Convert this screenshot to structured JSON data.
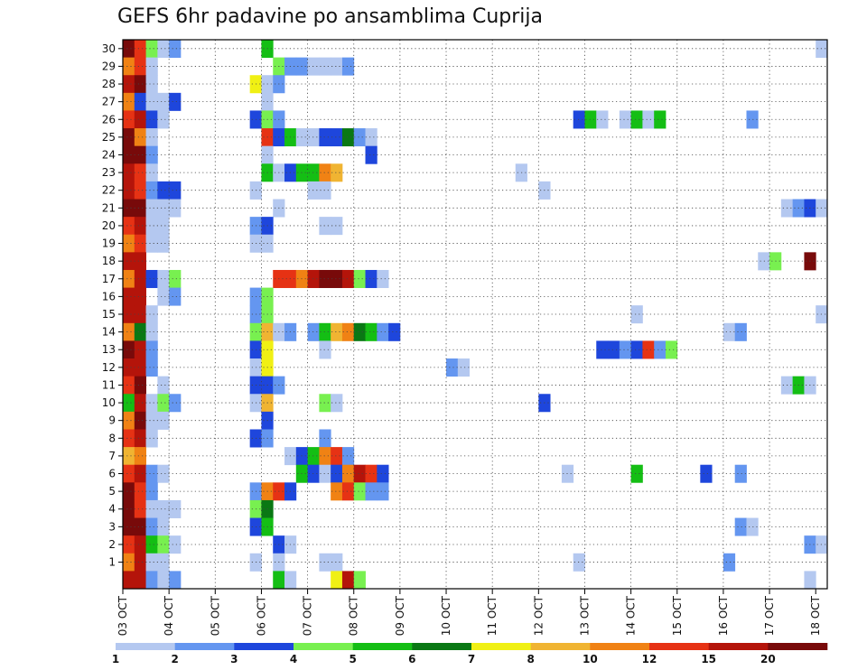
{
  "chart_data": {
    "type": "heatmap",
    "title": "GEFS 6hr padavine po ansamblima Cuprija",
    "xlabel": "",
    "ylabel": "",
    "x_start": "03 OCT",
    "steps_per_day": 4,
    "n_steps": 61,
    "x_ticks": [
      "03 OCT",
      "04 OCT",
      "05 OCT",
      "06 OCT",
      "07 OCT",
      "08 OCT",
      "09 OCT",
      "10 OCT",
      "11 OCT",
      "12 OCT",
      "13 OCT",
      "14 OCT",
      "15 OCT",
      "16 OCT",
      "17 OCT",
      "18 OCT"
    ],
    "y_ticks": [
      1,
      2,
      3,
      4,
      5,
      6,
      7,
      8,
      9,
      10,
      11,
      12,
      13,
      14,
      15,
      16,
      17,
      18,
      19,
      20,
      21,
      22,
      23,
      24,
      25,
      26,
      27,
      28,
      29,
      30
    ],
    "members": [
      0,
      1,
      2,
      3,
      4,
      5,
      6,
      7,
      8,
      9,
      10,
      11,
      12,
      13,
      14,
      15,
      16,
      17,
      18,
      19,
      20,
      21,
      22,
      23,
      24,
      25,
      26,
      27,
      28,
      29,
      30
    ],
    "grid": true,
    "colorbar": {
      "bounds": [
        1,
        2,
        3,
        4,
        5,
        6,
        7,
        8,
        10,
        12,
        15,
        20
      ],
      "tick_labels": [
        "1",
        "2",
        "3",
        "4",
        "5",
        "6",
        "7",
        "8",
        "10",
        "12",
        "15",
        "20"
      ],
      "colors": [
        "#b4c8f0",
        "#6496f0",
        "#1e46dc",
        "#78f050",
        "#14be14",
        "#0a7814",
        "#f0f014",
        "#f0b432",
        "#f08214",
        "#e63214",
        "#b4140a",
        "#780a0a"
      ]
    },
    "cells": [
      [
        30,
        0,
        11
      ],
      [
        30,
        1,
        9
      ],
      [
        30,
        2,
        3
      ],
      [
        30,
        3,
        0
      ],
      [
        30,
        4,
        1
      ],
      [
        30,
        12,
        4
      ],
      [
        30,
        60,
        0
      ],
      [
        29,
        0,
        8
      ],
      [
        29,
        1,
        9
      ],
      [
        29,
        2,
        0
      ],
      [
        29,
        13,
        3
      ],
      [
        29,
        14,
        1
      ],
      [
        29,
        15,
        1
      ],
      [
        29,
        16,
        0
      ],
      [
        29,
        17,
        0
      ],
      [
        29,
        18,
        0
      ],
      [
        29,
        19,
        1
      ],
      [
        28,
        0,
        10
      ],
      [
        28,
        1,
        11
      ],
      [
        28,
        2,
        0
      ],
      [
        28,
        11,
        6
      ],
      [
        28,
        12,
        0
      ],
      [
        28,
        13,
        1
      ],
      [
        27,
        0,
        8
      ],
      [
        27,
        1,
        2
      ],
      [
        27,
        2,
        0
      ],
      [
        27,
        3,
        0
      ],
      [
        27,
        4,
        2
      ],
      [
        27,
        12,
        0
      ],
      [
        26,
        0,
        9
      ],
      [
        26,
        1,
        10
      ],
      [
        26,
        2,
        2
      ],
      [
        26,
        3,
        0
      ],
      [
        26,
        11,
        2
      ],
      [
        26,
        12,
        3
      ],
      [
        26,
        13,
        1
      ],
      [
        26,
        39,
        2
      ],
      [
        26,
        40,
        4
      ],
      [
        26,
        41,
        0
      ],
      [
        26,
        43,
        0
      ],
      [
        26,
        44,
        4
      ],
      [
        26,
        45,
        0
      ],
      [
        26,
        46,
        4
      ],
      [
        26,
        54,
        1
      ],
      [
        25,
        0,
        11
      ],
      [
        25,
        1,
        8
      ],
      [
        25,
        2,
        0
      ],
      [
        25,
        12,
        9
      ],
      [
        25,
        13,
        2
      ],
      [
        25,
        14,
        4
      ],
      [
        25,
        15,
        0
      ],
      [
        25,
        16,
        0
      ],
      [
        25,
        17,
        2
      ],
      [
        25,
        18,
        2
      ],
      [
        25,
        19,
        5
      ],
      [
        25,
        20,
        1
      ],
      [
        25,
        21,
        0
      ],
      [
        24,
        0,
        11
      ],
      [
        24,
        1,
        11
      ],
      [
        24,
        2,
        1
      ],
      [
        24,
        12,
        0
      ],
      [
        24,
        21,
        2
      ],
      [
        23,
        0,
        10
      ],
      [
        23,
        1,
        9
      ],
      [
        23,
        2,
        0
      ],
      [
        23,
        12,
        4
      ],
      [
        23,
        13,
        0
      ],
      [
        23,
        14,
        2
      ],
      [
        23,
        15,
        4
      ],
      [
        23,
        16,
        4
      ],
      [
        23,
        17,
        8
      ],
      [
        23,
        18,
        7
      ],
      [
        23,
        34,
        0
      ],
      [
        22,
        0,
        10
      ],
      [
        22,
        1,
        9
      ],
      [
        22,
        2,
        1
      ],
      [
        22,
        3,
        2
      ],
      [
        22,
        4,
        2
      ],
      [
        22,
        11,
        0
      ],
      [
        22,
        16,
        0
      ],
      [
        22,
        17,
        0
      ],
      [
        22,
        36,
        0
      ],
      [
        21,
        0,
        11
      ],
      [
        21,
        1,
        11
      ],
      [
        21,
        2,
        0
      ],
      [
        21,
        3,
        0
      ],
      [
        21,
        4,
        0
      ],
      [
        21,
        13,
        0
      ],
      [
        21,
        57,
        0
      ],
      [
        21,
        58,
        1
      ],
      [
        21,
        59,
        2
      ],
      [
        21,
        60,
        0
      ],
      [
        20,
        0,
        9
      ],
      [
        20,
        1,
        10
      ],
      [
        20,
        2,
        0
      ],
      [
        20,
        3,
        0
      ],
      [
        20,
        11,
        1
      ],
      [
        20,
        12,
        2
      ],
      [
        20,
        17,
        0
      ],
      [
        20,
        18,
        0
      ],
      [
        19,
        0,
        8
      ],
      [
        19,
        1,
        9
      ],
      [
        19,
        2,
        0
      ],
      [
        19,
        3,
        0
      ],
      [
        19,
        11,
        0
      ],
      [
        19,
        12,
        0
      ],
      [
        18,
        0,
        10
      ],
      [
        18,
        1,
        10
      ],
      [
        18,
        55,
        0
      ],
      [
        18,
        56,
        3
      ],
      [
        18,
        59,
        11
      ],
      [
        17,
        0,
        8
      ],
      [
        17,
        1,
        10
      ],
      [
        17,
        2,
        2
      ],
      [
        17,
        3,
        0
      ],
      [
        17,
        4,
        3
      ],
      [
        17,
        13,
        9
      ],
      [
        17,
        14,
        9
      ],
      [
        17,
        15,
        8
      ],
      [
        17,
        16,
        10
      ],
      [
        17,
        17,
        11
      ],
      [
        17,
        18,
        11
      ],
      [
        17,
        19,
        10
      ],
      [
        17,
        20,
        3
      ],
      [
        17,
        21,
        2
      ],
      [
        17,
        22,
        0
      ],
      [
        16,
        0,
        10
      ],
      [
        16,
        1,
        10
      ],
      [
        16,
        3,
        0
      ],
      [
        16,
        4,
        1
      ],
      [
        16,
        11,
        1
      ],
      [
        16,
        12,
        3
      ],
      [
        15,
        0,
        10
      ],
      [
        15,
        1,
        10
      ],
      [
        15,
        2,
        0
      ],
      [
        15,
        11,
        1
      ],
      [
        15,
        12,
        3
      ],
      [
        15,
        44,
        0
      ],
      [
        15,
        60,
        0
      ],
      [
        14,
        0,
        8
      ],
      [
        14,
        1,
        5
      ],
      [
        14,
        2,
        0
      ],
      [
        14,
        11,
        3
      ],
      [
        14,
        12,
        7
      ],
      [
        14,
        13,
        0
      ],
      [
        14,
        14,
        1
      ],
      [
        14,
        16,
        1
      ],
      [
        14,
        17,
        4
      ],
      [
        14,
        18,
        7
      ],
      [
        14,
        19,
        8
      ],
      [
        14,
        20,
        5
      ],
      [
        14,
        21,
        4
      ],
      [
        14,
        22,
        1
      ],
      [
        14,
        23,
        2
      ],
      [
        14,
        52,
        0
      ],
      [
        14,
        53,
        1
      ],
      [
        13,
        0,
        11
      ],
      [
        13,
        1,
        10
      ],
      [
        13,
        2,
        1
      ],
      [
        13,
        11,
        2
      ],
      [
        13,
        12,
        6
      ],
      [
        13,
        17,
        0
      ],
      [
        13,
        41,
        2
      ],
      [
        13,
        42,
        2
      ],
      [
        13,
        43,
        1
      ],
      [
        13,
        44,
        2
      ],
      [
        13,
        45,
        9
      ],
      [
        13,
        46,
        1
      ],
      [
        13,
        47,
        3
      ],
      [
        12,
        0,
        10
      ],
      [
        12,
        1,
        10
      ],
      [
        12,
        2,
        1
      ],
      [
        12,
        11,
        0
      ],
      [
        12,
        12,
        6
      ],
      [
        12,
        28,
        1
      ],
      [
        12,
        29,
        0
      ],
      [
        11,
        0,
        9
      ],
      [
        11,
        1,
        11
      ],
      [
        11,
        3,
        0
      ],
      [
        11,
        11,
        2
      ],
      [
        11,
        12,
        2
      ],
      [
        11,
        13,
        1
      ],
      [
        11,
        57,
        0
      ],
      [
        11,
        58,
        4
      ],
      [
        11,
        59,
        0
      ],
      [
        10,
        0,
        4
      ],
      [
        10,
        1,
        10
      ],
      [
        10,
        2,
        0
      ],
      [
        10,
        3,
        3
      ],
      [
        10,
        4,
        1
      ],
      [
        10,
        11,
        0
      ],
      [
        10,
        12,
        7
      ],
      [
        10,
        17,
        3
      ],
      [
        10,
        18,
        0
      ],
      [
        10,
        36,
        2
      ],
      [
        9,
        0,
        8
      ],
      [
        9,
        1,
        11
      ],
      [
        9,
        2,
        0
      ],
      [
        9,
        3,
        0
      ],
      [
        9,
        12,
        2
      ],
      [
        8,
        0,
        9
      ],
      [
        8,
        1,
        10
      ],
      [
        8,
        2,
        0
      ],
      [
        8,
        11,
        2
      ],
      [
        8,
        12,
        1
      ],
      [
        8,
        17,
        1
      ],
      [
        7,
        0,
        7
      ],
      [
        7,
        1,
        8
      ],
      [
        7,
        14,
        0
      ],
      [
        7,
        15,
        2
      ],
      [
        7,
        16,
        4
      ],
      [
        7,
        17,
        8
      ],
      [
        7,
        18,
        9
      ],
      [
        7,
        19,
        1
      ],
      [
        6,
        0,
        9
      ],
      [
        6,
        1,
        10
      ],
      [
        6,
        2,
        1
      ],
      [
        6,
        3,
        0
      ],
      [
        6,
        15,
        4
      ],
      [
        6,
        16,
        2
      ],
      [
        6,
        17,
        0
      ],
      [
        6,
        18,
        2
      ],
      [
        6,
        19,
        8
      ],
      [
        6,
        20,
        10
      ],
      [
        6,
        21,
        9
      ],
      [
        6,
        22,
        2
      ],
      [
        6,
        38,
        0
      ],
      [
        6,
        44,
        4
      ],
      [
        6,
        50,
        2
      ],
      [
        6,
        53,
        1
      ],
      [
        5,
        0,
        11
      ],
      [
        5,
        1,
        9
      ],
      [
        5,
        2,
        1
      ],
      [
        5,
        11,
        1
      ],
      [
        5,
        12,
        8
      ],
      [
        5,
        13,
        9
      ],
      [
        5,
        14,
        2
      ],
      [
        5,
        18,
        8
      ],
      [
        5,
        19,
        9
      ],
      [
        5,
        20,
        3
      ],
      [
        5,
        21,
        1
      ],
      [
        5,
        22,
        1
      ],
      [
        4,
        0,
        11
      ],
      [
        4,
        1,
        9
      ],
      [
        4,
        2,
        0
      ],
      [
        4,
        3,
        0
      ],
      [
        4,
        4,
        0
      ],
      [
        4,
        11,
        3
      ],
      [
        4,
        12,
        5
      ],
      [
        3,
        0,
        11
      ],
      [
        3,
        1,
        11
      ],
      [
        3,
        2,
        1
      ],
      [
        3,
        3,
        0
      ],
      [
        3,
        11,
        2
      ],
      [
        3,
        12,
        4
      ],
      [
        3,
        53,
        1
      ],
      [
        3,
        54,
        0
      ],
      [
        2,
        0,
        9
      ],
      [
        2,
        1,
        10
      ],
      [
        2,
        2,
        4
      ],
      [
        2,
        3,
        3
      ],
      [
        2,
        4,
        0
      ],
      [
        2,
        13,
        2
      ],
      [
        2,
        14,
        0
      ],
      [
        2,
        59,
        1
      ],
      [
        2,
        60,
        0
      ],
      [
        1,
        0,
        8
      ],
      [
        1,
        1,
        10
      ],
      [
        1,
        2,
        0
      ],
      [
        1,
        3,
        0
      ],
      [
        1,
        11,
        0
      ],
      [
        1,
        13,
        0
      ],
      [
        1,
        17,
        0
      ],
      [
        1,
        18,
        0
      ],
      [
        1,
        39,
        0
      ],
      [
        1,
        52,
        1
      ],
      [
        0,
        0,
        10
      ],
      [
        0,
        1,
        10
      ],
      [
        0,
        2,
        1
      ],
      [
        0,
        3,
        0
      ],
      [
        0,
        4,
        1
      ],
      [
        0,
        13,
        4
      ],
      [
        0,
        14,
        0
      ],
      [
        0,
        18,
        6
      ],
      [
        0,
        19,
        10
      ],
      [
        0,
        20,
        3
      ],
      [
        0,
        59,
        0
      ]
    ]
  }
}
